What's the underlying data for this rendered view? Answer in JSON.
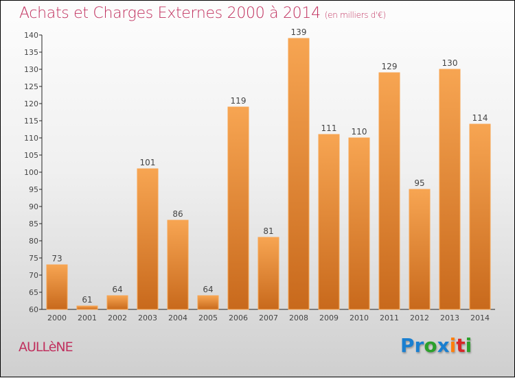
{
  "header": {
    "title": "Achats et Charges Externes 2000 à 2014",
    "subtitle": "(en milliers d'€)"
  },
  "footer": {
    "commune": "AULLèNE",
    "logo": [
      "P",
      "r",
      "o",
      "x",
      "i",
      "t",
      "i"
    ],
    "logo_colors": [
      "#1a7fd0",
      "#1a7fd0",
      "#2ca02c",
      "#1a7fd0",
      "#ff7f0e",
      "#d62728",
      "#2ca02c"
    ]
  },
  "chart_data": {
    "type": "bar",
    "title": "Achats et Charges Externes 2000 à 2014",
    "subtitle": "(en milliers d'€)",
    "categories": [
      "2000",
      "2001",
      "2002",
      "2003",
      "2004",
      "2005",
      "2006",
      "2007",
      "2008",
      "2009",
      "2010",
      "2011",
      "2012",
      "2013",
      "2014"
    ],
    "values": [
      73,
      61,
      64,
      101,
      86,
      64,
      119,
      81,
      139,
      111,
      110,
      129,
      95,
      130,
      114
    ],
    "ylim": [
      60,
      140
    ],
    "yticks": [
      60,
      65,
      70,
      75,
      80,
      85,
      90,
      95,
      100,
      105,
      110,
      115,
      120,
      125,
      130,
      135,
      140
    ],
    "xlabel": "",
    "ylabel": "",
    "bar_color": "#f0892f"
  }
}
